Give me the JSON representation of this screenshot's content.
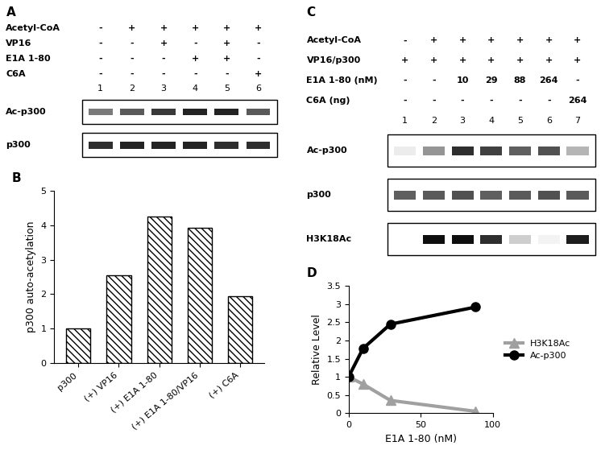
{
  "chart_data": [
    {
      "panel": "B",
      "type": "bar",
      "categories": [
        "p300",
        "(+) VP16",
        "(+) E1A 1-80",
        "(+) E1A 1-80/VP16",
        "(+) C6A"
      ],
      "values": [
        1,
        2.55,
        4.25,
        3.92,
        1.95
      ],
      "y_label": "p300 auto-acetylation",
      "ylim": [
        0,
        5
      ],
      "yticks": [
        0,
        1,
        2,
        3,
        4,
        5
      ],
      "color": "#ffffff"
    },
    {
      "panel": "D",
      "type": "line",
      "x_label": "E1A 1-80 (nM)",
      "y_label": "Relative Level",
      "xlim": [
        0,
        100
      ],
      "xticks": [
        0,
        50,
        100
      ],
      "ylim": [
        0,
        3.5
      ],
      "yticks": [
        0,
        0.5,
        1,
        1.5,
        2,
        2.5,
        3,
        3.5
      ],
      "legend": "right",
      "series": [
        {
          "name": "H3K18Ac",
          "color": "#a0a0a0",
          "marker": "triangle",
          "x": [
            0,
            10,
            29,
            88
          ],
          "values": [
            1,
            0.8,
            0.35,
            0.05
          ]
        },
        {
          "name": "Ac-p300",
          "color": "#000000",
          "marker": "circle",
          "x": [
            0,
            10,
            29,
            88
          ],
          "values": [
            1,
            1.78,
            2.45,
            2.92
          ]
        }
      ]
    }
  ],
  "blots": [
    {
      "panel": "A",
      "header_rows": [
        {
          "label": "Acetyl-CoA",
          "values": [
            "-",
            "+",
            "+",
            "+",
            "+",
            "+"
          ]
        },
        {
          "label": "VP16",
          "values": [
            "-",
            "-",
            "+",
            "-",
            "+",
            "-"
          ]
        },
        {
          "label": "E1A 1-80",
          "values": [
            "-",
            "-",
            "-",
            "+",
            "+",
            "-"
          ]
        },
        {
          "label": "C6A",
          "values": [
            "-",
            "-",
            "-",
            "-",
            "-",
            "+"
          ]
        }
      ],
      "lanes": [
        1,
        2,
        3,
        4,
        5,
        6
      ],
      "bands": [
        {
          "name": "Ac-p300",
          "intensity": [
            0.6,
            0.72,
            0.82,
            0.88,
            0.88,
            0.72
          ]
        },
        {
          "name": "p300",
          "intensity": [
            0.85,
            0.88,
            0.88,
            0.88,
            0.85,
            0.85
          ]
        }
      ]
    },
    {
      "panel": "C",
      "header_rows": [
        {
          "label": "Acetyl-CoA",
          "values": [
            "-",
            "+",
            "+",
            "+",
            "+",
            "+",
            "+"
          ]
        },
        {
          "label": "VP16/p300",
          "values": [
            "+",
            "+",
            "+",
            "+",
            "+",
            "+",
            "+"
          ]
        },
        {
          "label": "E1A 1-80 (nM)",
          "values": [
            "-",
            "-",
            "10",
            "29",
            "88",
            "264",
            "-"
          ]
        },
        {
          "label": "C6A (ng)",
          "values": [
            "-",
            "-",
            "-",
            "-",
            "-",
            "-",
            "264"
          ]
        }
      ],
      "lanes": [
        1,
        2,
        3,
        4,
        5,
        6,
        7
      ],
      "bands": [
        {
          "name": "Ac-p300",
          "intensity": [
            0.15,
            0.5,
            0.85,
            0.8,
            0.7,
            0.75,
            0.4
          ]
        },
        {
          "name": "p300",
          "intensity": [
            0.7,
            0.72,
            0.75,
            0.7,
            0.72,
            0.75,
            0.72
          ]
        },
        {
          "name": "H3K18Ac",
          "intensity": [
            0.0,
            0.95,
            0.95,
            0.85,
            0.3,
            0.1,
            0.9
          ]
        }
      ]
    }
  ]
}
